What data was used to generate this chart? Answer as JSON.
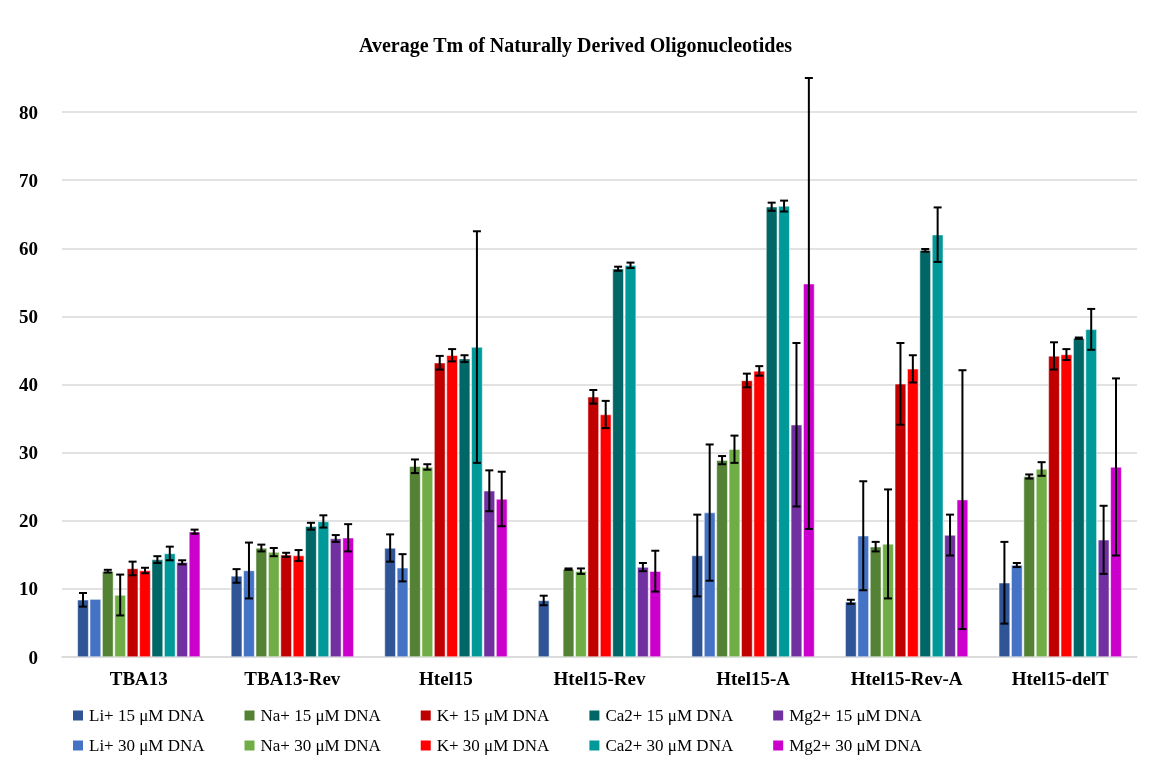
{
  "chart_data": {
    "type": "bar",
    "title": "Average Tm of Naturally Derived Oligonucleotides",
    "categories": [
      "TBA13",
      "TBA13-Rev",
      "Htel15",
      "Htel15-Rev",
      "Htel15-A",
      "Htel15-Rev-A",
      "Htel15-delT"
    ],
    "ylim": [
      0,
      85
    ],
    "yticks": [
      0,
      10,
      20,
      30,
      40,
      50,
      60,
      70,
      80
    ],
    "grid": "y",
    "legend": "bottom",
    "series": [
      {
        "name": "Li+ 15 μM DNA",
        "color": "#2f5597",
        "values": [
          8.4,
          11.9,
          16.0,
          8.3,
          14.9,
          8.1,
          10.9
        ],
        "errors": [
          1,
          1,
          2,
          0.7,
          6,
          0.3,
          6
        ]
      },
      {
        "name": "Li+ 30 μM DNA",
        "color": "#4472c4",
        "values": [
          8.5,
          12.7,
          13.1,
          null,
          21.2,
          17.8,
          13.5
        ],
        "errors": [
          null,
          4.1,
          2,
          null,
          10,
          8,
          0.3
        ]
      },
      {
        "name": "Na+ 15 μM DNA",
        "color": "#548235",
        "values": [
          12.6,
          16.0,
          28.0,
          12.9,
          28.9,
          16.2,
          26.5
        ],
        "errors": [
          0.2,
          0.5,
          1,
          0.1,
          0.6,
          0.7,
          0.3
        ]
      },
      {
        "name": "Na+ 30 μM DNA",
        "color": "#70ad47",
        "values": [
          9.1,
          15.4,
          27.9,
          12.6,
          30.5,
          16.6,
          27.6
        ],
        "errors": [
          3,
          0.6,
          0.4,
          0.4,
          2,
          8,
          1
        ]
      },
      {
        "name": "K+ 15 μM DNA",
        "color": "#c00000",
        "values": [
          13.0,
          15.0,
          43.2,
          38.2,
          40.6,
          40.1,
          44.2
        ],
        "errors": [
          1,
          0.3,
          1,
          1,
          1,
          6,
          2
        ]
      },
      {
        "name": "K+ 30 μM DNA",
        "color": "#ff0000",
        "values": [
          12.7,
          14.9,
          44.3,
          35.6,
          42.0,
          42.3,
          44.4
        ],
        "errors": [
          0.4,
          0.8,
          0.9,
          2,
          0.7,
          2,
          0.8
        ]
      },
      {
        "name": "Ca2+ 15 μM DNA",
        "color": "#006666",
        "values": [
          14.3,
          19.2,
          43.8,
          57.0,
          66.1,
          59.7,
          46.8
        ],
        "errors": [
          0.5,
          0.5,
          0.5,
          0.3,
          0.6,
          0.2,
          0.1
        ]
      },
      {
        "name": "Ca2+ 30 μM DNA",
        "color": "#009999",
        "values": [
          15.2,
          19.9,
          45.5,
          57.5,
          66.2,
          62.0,
          48.1
        ],
        "errors": [
          1,
          0.9,
          17,
          0.4,
          0.8,
          4,
          3
        ]
      },
      {
        "name": "Mg2+ 15 μM DNA",
        "color": "#7030a0",
        "values": [
          13.9,
          17.4,
          24.4,
          13.2,
          34.1,
          17.9,
          17.2
        ],
        "errors": [
          0.3,
          0.5,
          3,
          0.6,
          12,
          3,
          5
        ]
      },
      {
        "name": "Mg2+ 30 μM DNA",
        "color": "#cc00cc",
        "values": [
          18.4,
          17.5,
          23.2,
          12.6,
          54.8,
          23.1,
          27.9
        ],
        "errors": [
          0.3,
          2,
          4,
          3,
          [
            18.8,
            85
          ],
          19,
          13
        ]
      }
    ]
  }
}
